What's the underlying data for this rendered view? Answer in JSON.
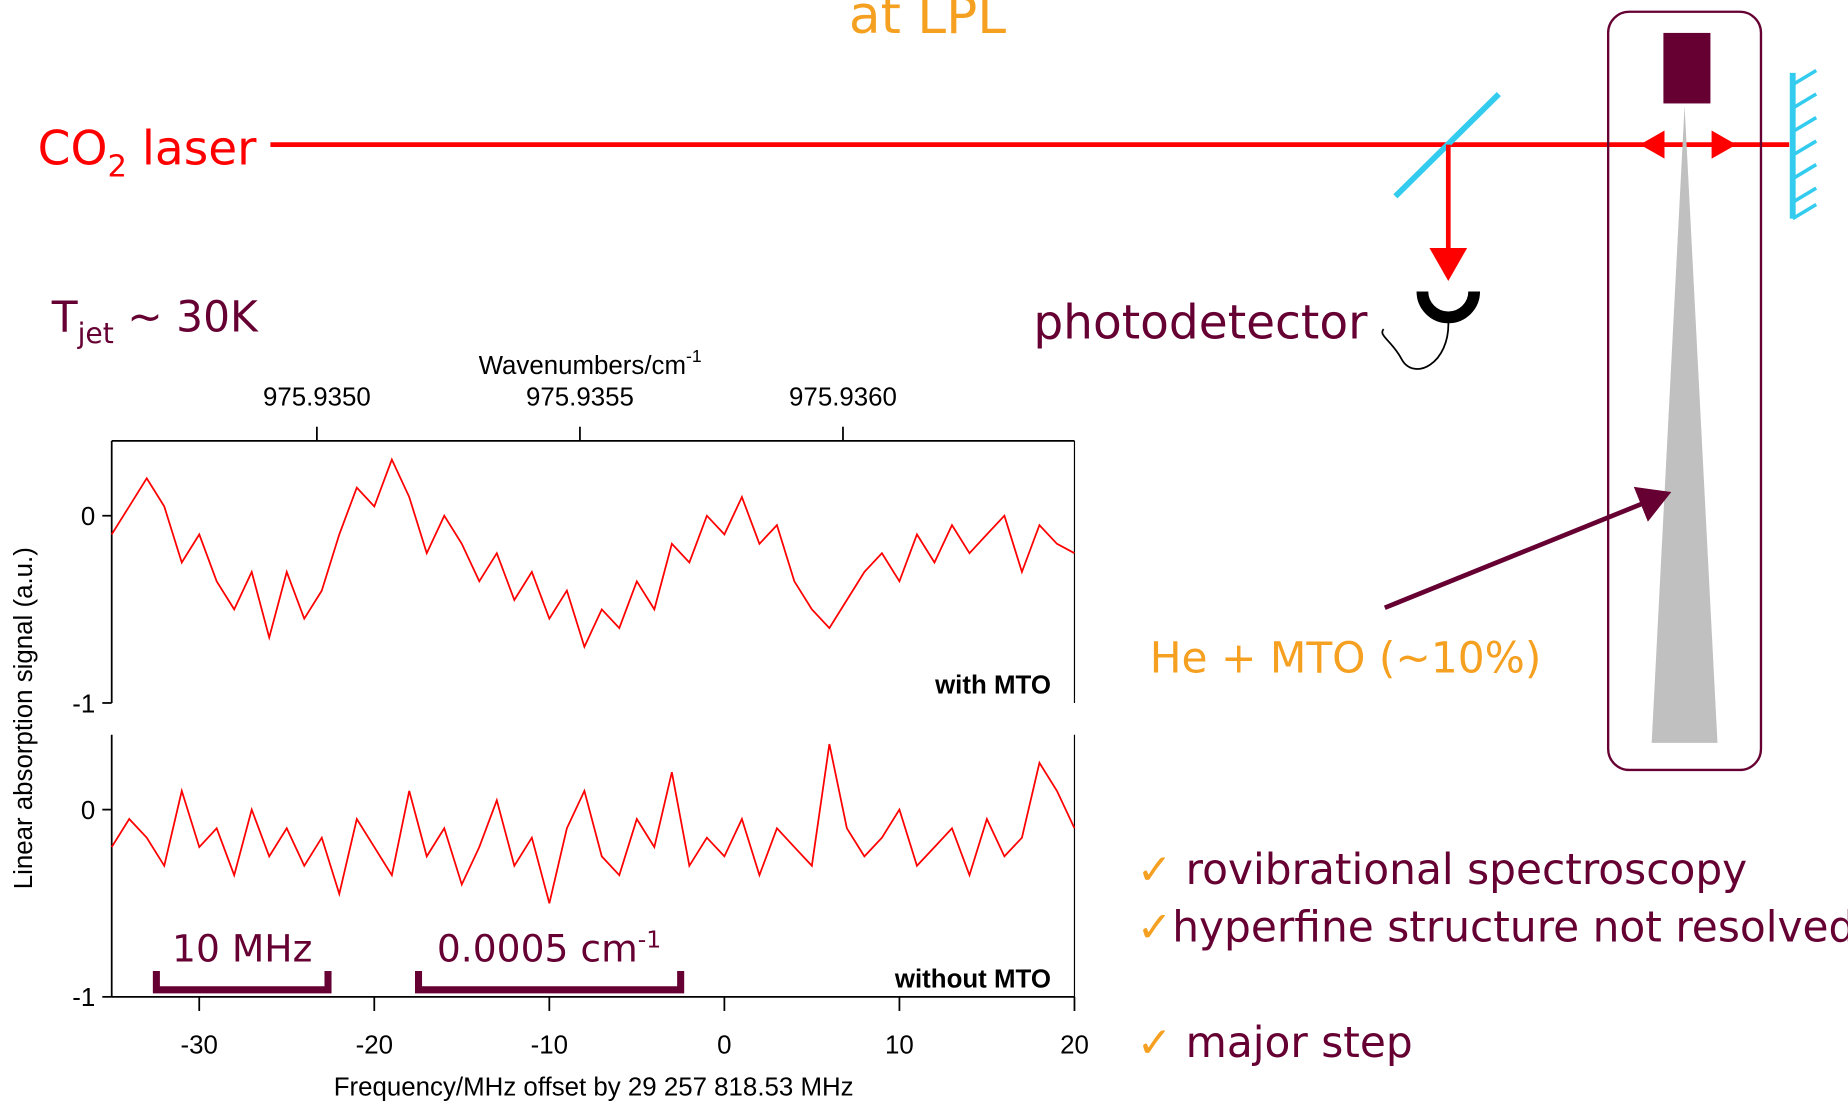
{
  "slide": {
    "title": "at LPL",
    "laser": {
      "label": "CO",
      "sub": "2",
      "rest": " laser"
    },
    "temperature": {
      "label": "T",
      "sub": "jet",
      "rest": " ~ 30K"
    },
    "detector": "photodetector",
    "gas": "He + MTO (~10%)",
    "bullets": [
      {
        "mark": "✓",
        "text": " rovibrational spectroscopy"
      },
      {
        "mark": "✓",
        "text": "hyperfine structure not resolved"
      },
      {
        "mark": "✓",
        "text": " major step"
      }
    ],
    "scale_bars": [
      {
        "label": "10 MHz"
      },
      {
        "label": "0.0005 cm",
        "sup": "-1"
      }
    ]
  },
  "chart_data": [
    {
      "type": "line",
      "ylabel": "Linear absorption signal (a.u.)",
      "x2label": "Wavenumbers/cm",
      "x2label_sup": "-1",
      "x2lim": [
        975.93461,
        975.93644
      ],
      "x2ticks": [
        {
          "value": 975.935,
          "label": "975.9350"
        },
        {
          "value": 975.9355,
          "label": "975.9355"
        },
        {
          "value": 975.936,
          "label": "975.9360"
        }
      ],
      "xlim": [
        -35,
        20
      ],
      "ylim": [
        -1,
        0.4
      ],
      "yticks": [
        -1,
        0
      ],
      "x": [
        -35,
        -34,
        -33,
        -32,
        -31,
        -30,
        -29,
        -28,
        -27,
        -26,
        -25,
        -24,
        -23,
        -22,
        -21,
        -20,
        -19,
        -18,
        -17,
        -16,
        -15,
        -14,
        -13,
        -12,
        -11,
        -10,
        -9,
        -8,
        -7,
        -6,
        -5,
        -4,
        -3,
        -2,
        -1,
        0,
        1,
        2,
        3,
        4,
        5,
        6,
        7,
        8,
        9,
        10,
        11,
        12,
        13,
        14,
        15,
        16,
        17,
        18,
        19,
        20
      ],
      "series": [
        {
          "name": "with MTO",
          "color": "#ff0000",
          "values": [
            -0.1,
            0.05,
            0.2,
            0.05,
            -0.25,
            -0.1,
            -0.35,
            -0.5,
            -0.3,
            -0.65,
            -0.3,
            -0.55,
            -0.4,
            -0.1,
            0.15,
            0.05,
            0.3,
            0.1,
            -0.2,
            0.0,
            -0.15,
            -0.35,
            -0.2,
            -0.45,
            -0.3,
            -0.55,
            -0.4,
            -0.7,
            -0.5,
            -0.6,
            -0.35,
            -0.5,
            -0.15,
            -0.25,
            0.0,
            -0.1,
            0.1,
            -0.15,
            -0.05,
            -0.35,
            -0.5,
            -0.6,
            -0.45,
            -0.3,
            -0.2,
            -0.35,
            -0.1,
            -0.25,
            -0.05,
            -0.2,
            -0.1,
            0.0,
            -0.3,
            -0.05,
            -0.15,
            -0.2
          ]
        }
      ]
    },
    {
      "type": "line",
      "xlabel": "Frequency/MHz offset by 29 257 818.53 MHz",
      "xlim": [
        -35,
        20
      ],
      "xticks": [
        -30,
        -20,
        -10,
        0,
        10,
        20
      ],
      "ylim": [
        -1,
        0.4
      ],
      "yticks": [
        -1,
        0
      ],
      "x": [
        -35,
        -34,
        -33,
        -32,
        -31,
        -30,
        -29,
        -28,
        -27,
        -26,
        -25,
        -24,
        -23,
        -22,
        -21,
        -20,
        -19,
        -18,
        -17,
        -16,
        -15,
        -14,
        -13,
        -12,
        -11,
        -10,
        -9,
        -8,
        -7,
        -6,
        -5,
        -4,
        -3,
        -2,
        -1,
        0,
        1,
        2,
        3,
        4,
        5,
        6,
        7,
        8,
        9,
        10,
        11,
        12,
        13,
        14,
        15,
        16,
        17,
        18,
        19,
        20
      ],
      "series": [
        {
          "name": "without MTO",
          "color": "#ff0000",
          "values": [
            -0.2,
            -0.05,
            -0.15,
            -0.3,
            0.1,
            -0.2,
            -0.1,
            -0.35,
            0.0,
            -0.25,
            -0.1,
            -0.3,
            -0.15,
            -0.45,
            -0.05,
            -0.2,
            -0.35,
            0.1,
            -0.25,
            -0.1,
            -0.4,
            -0.2,
            0.05,
            -0.3,
            -0.15,
            -0.5,
            -0.1,
            0.1,
            -0.25,
            -0.35,
            -0.05,
            -0.2,
            0.2,
            -0.3,
            -0.15,
            -0.25,
            -0.05,
            -0.35,
            -0.1,
            -0.2,
            -0.3,
            0.35,
            -0.1,
            -0.25,
            -0.15,
            0.0,
            -0.3,
            -0.2,
            -0.1,
            -0.35,
            -0.05,
            -0.25,
            -0.15,
            0.25,
            0.1,
            -0.1
          ]
        }
      ]
    }
  ]
}
